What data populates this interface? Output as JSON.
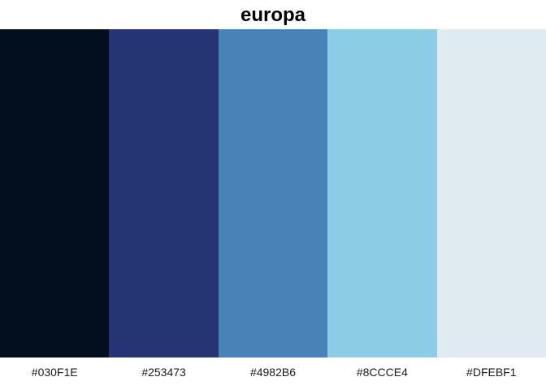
{
  "chart_data": {
    "type": "bar",
    "title": "europa",
    "categories": [
      "#030F1E",
      "#253473",
      "#4982B6",
      "#8CCCE4",
      "#DFEBF1"
    ],
    "values": [
      1,
      1,
      1,
      1,
      1
    ],
    "colors": [
      "#030F1E",
      "#253473",
      "#4982B6",
      "#8CCCE4",
      "#DFEBF1"
    ],
    "xlabel": "",
    "ylabel": "",
    "grid": false,
    "legend": "none"
  }
}
